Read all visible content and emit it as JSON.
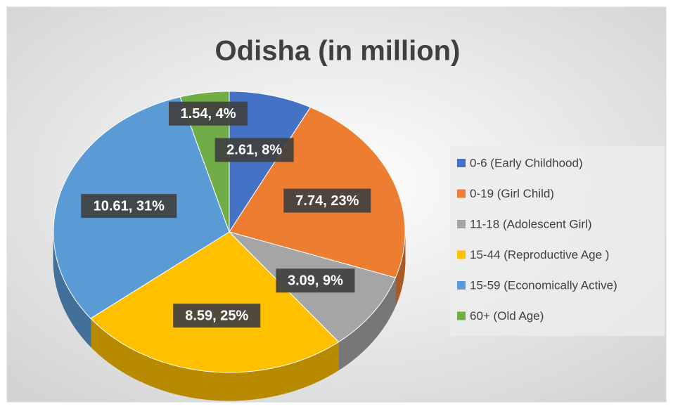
{
  "chart_data": {
    "type": "pie",
    "title": "Odisha (in million)",
    "categories": [
      "0-6  (Early Childhood)",
      "0-19  (Girl Child)",
      "11-18  (Adolescent Girl)",
      "15-44  (Reproductive Age )",
      "15-59 (Economically Active)",
      "60+ (Old Age)"
    ],
    "values": [
      2.61,
      7.74,
      3.09,
      8.59,
      10.61,
      1.54
    ],
    "value_labels": [
      "2.61, 8%",
      "7.74, 23%",
      "3.09, 9%",
      "8.59, 25%",
      "10.61, 31%",
      "1.54, 4%"
    ],
    "colors": [
      "#4472c4",
      "#ed7d31",
      "#a5a5a5",
      "#ffc000",
      "#5b9bd5",
      "#70ad47"
    ],
    "legend": "right"
  }
}
